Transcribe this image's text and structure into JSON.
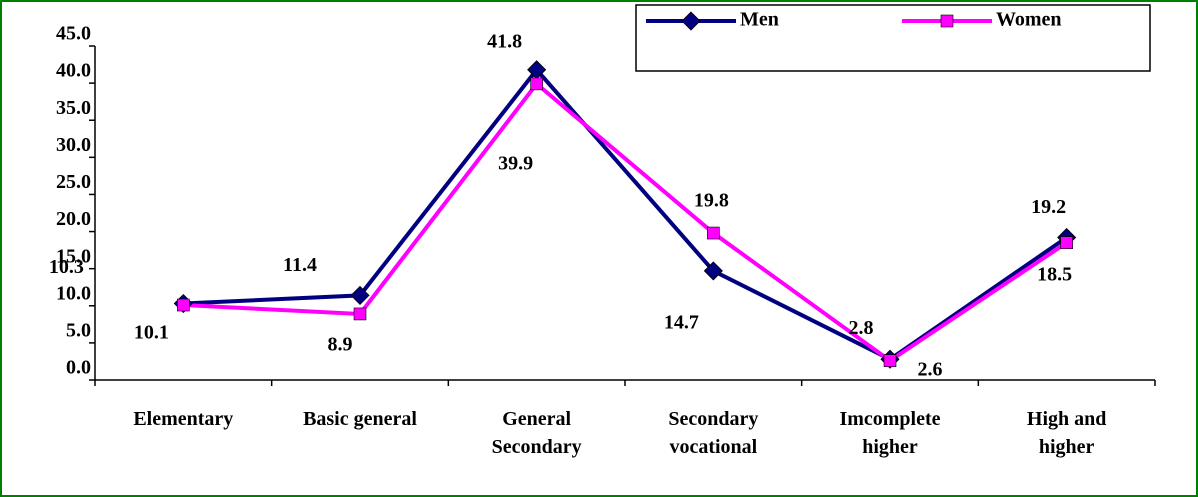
{
  "chart_data": {
    "type": "line",
    "categories": [
      "Elementary",
      "Basic general",
      "General Secondary",
      "Secondary vocational",
      "Imcomplete higher",
      "High and higher"
    ],
    "series": [
      {
        "name": "Men",
        "color": "#000080",
        "marker": "diamond",
        "values": [
          10.3,
          11.4,
          41.8,
          14.7,
          2.8,
          19.2
        ]
      },
      {
        "name": "Women",
        "color": "#ff00ff",
        "marker": "square",
        "values": [
          10.1,
          8.9,
          39.9,
          19.8,
          2.6,
          18.5
        ]
      }
    ],
    "ylim": [
      0,
      45
    ],
    "yticks": [
      {
        "value": 0,
        "label": "0.0"
      },
      {
        "value": 5,
        "label": "5.0"
      },
      {
        "value": 10,
        "label": "10.0"
      },
      {
        "value": 15,
        "label": "15.0"
      },
      {
        "value": 20,
        "label": "20.0"
      },
      {
        "value": 25,
        "label": "25.0"
      },
      {
        "value": 30,
        "label": "30.0"
      },
      {
        "value": 35,
        "label": "35.0"
      },
      {
        "value": 40,
        "label": "40.0"
      },
      {
        "value": 45,
        "label": "45.0"
      }
    ],
    "legend": "top-right"
  }
}
